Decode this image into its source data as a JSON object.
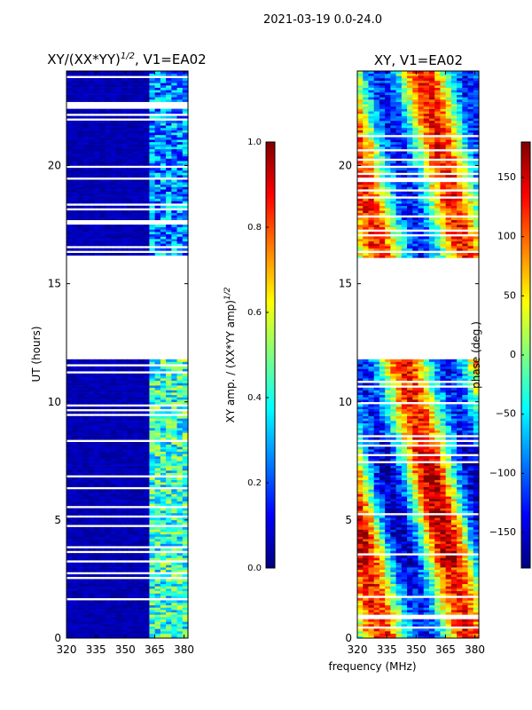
{
  "suptitle": "2021-03-19 0.0-24.0",
  "colors": {
    "jet": [
      "#00007f",
      "#0000ff",
      "#007fff",
      "#00ffff",
      "#7fff7f",
      "#ffff00",
      "#ff7f00",
      "#ff0000",
      "#7f0000"
    ],
    "frame": "#000000",
    "background": "#ffffff"
  },
  "chart_data": [
    {
      "type": "heatmap",
      "title_main": "XY/(XX*YY)",
      "title_sup": "1/2",
      "title_tail": ", V1=EA02",
      "xlabel": "",
      "ylabel": "UT (hours)",
      "xlim": [
        320,
        382
      ],
      "ylim": [
        0,
        24
      ],
      "xticks": [
        320,
        335,
        350,
        365,
        380
      ],
      "yticks": [
        0,
        5,
        10,
        15,
        20
      ],
      "no_data_hours": [
        11.7,
        16.0
      ],
      "colorbar": {
        "label_main": "XY amp. / (XX*YY amp)",
        "label_sup": "1/2",
        "range": [
          0.0,
          1.0
        ],
        "ticks": [
          "0.0",
          "0.2",
          "0.4",
          "0.6",
          "0.8",
          "1.0"
        ],
        "tick_values": [
          0.0,
          0.2,
          0.4,
          0.6,
          0.8,
          1.0
        ]
      }
    },
    {
      "type": "heatmap",
      "title_main": "XY, V1=EA02",
      "xlabel": "frequency (MHz)",
      "ylabel": "",
      "xlim": [
        320,
        382
      ],
      "ylim": [
        0,
        24
      ],
      "xticks": [
        320,
        335,
        350,
        365,
        380
      ],
      "yticks": [
        0,
        5,
        10,
        15,
        20
      ],
      "no_data_hours": [
        11.7,
        16.0
      ],
      "colorbar": {
        "label_main": "phase (deg.)",
        "range": [
          -180,
          180
        ],
        "ticks": [
          "150",
          "100",
          "50",
          "0",
          "−50",
          "−100",
          "−150"
        ],
        "tick_values": [
          150,
          100,
          50,
          0,
          -50,
          -100,
          -150
        ]
      }
    }
  ]
}
